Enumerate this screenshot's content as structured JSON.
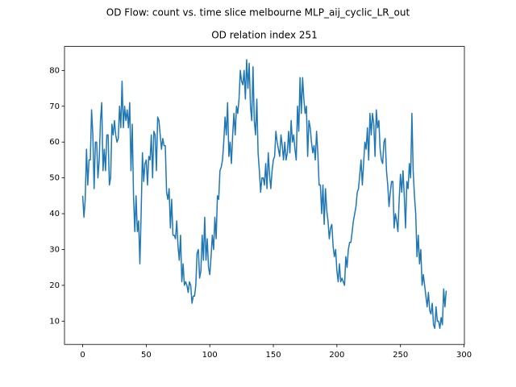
{
  "chart_data": {
    "type": "line",
    "suptitle": "OD Flow: count vs. time slice melbourne MLP_aij_cyclic_LR_out",
    "title": "OD relation index 251",
    "x": [
      0,
      1,
      2,
      3,
      4,
      5,
      6,
      7,
      8,
      9,
      10,
      11,
      12,
      13,
      14,
      15,
      16,
      17,
      18,
      19,
      20,
      21,
      22,
      23,
      24,
      25,
      26,
      27,
      28,
      29,
      30,
      31,
      32,
      33,
      34,
      35,
      36,
      37,
      38,
      39,
      40,
      41,
      42,
      43,
      44,
      45,
      46,
      47,
      48,
      49,
      50,
      51,
      52,
      53,
      54,
      55,
      56,
      57,
      58,
      59,
      60,
      61,
      62,
      63,
      64,
      65,
      66,
      67,
      68,
      69,
      70,
      71,
      72,
      73,
      74,
      75,
      76,
      77,
      78,
      79,
      80,
      81,
      82,
      83,
      84,
      85,
      86,
      87,
      88,
      89,
      90,
      91,
      92,
      93,
      94,
      95,
      96,
      97,
      98,
      99,
      100,
      101,
      102,
      103,
      104,
      105,
      106,
      107,
      108,
      109,
      110,
      111,
      112,
      113,
      114,
      115,
      116,
      117,
      118,
      119,
      120,
      121,
      122,
      123,
      124,
      125,
      126,
      127,
      128,
      129,
      130,
      131,
      132,
      133,
      134,
      135,
      136,
      137,
      138,
      139,
      140,
      141,
      142,
      143,
      144,
      145,
      146,
      147,
      148,
      149,
      150,
      151,
      152,
      153,
      154,
      155,
      156,
      157,
      158,
      159,
      160,
      161,
      162,
      163,
      164,
      165,
      166,
      167,
      168,
      169,
      170,
      171,
      172,
      173,
      174,
      175,
      176,
      177,
      178,
      179,
      180,
      181,
      182,
      183,
      184,
      185,
      186,
      187,
      188,
      189,
      190,
      191,
      192,
      193,
      194,
      195,
      196,
      197,
      198,
      199,
      200,
      201,
      202,
      203,
      204,
      205,
      206,
      207,
      208,
      209,
      210,
      211,
      212,
      213,
      214,
      215,
      216,
      217,
      218,
      219,
      220,
      221,
      222,
      223,
      224,
      225,
      226,
      227,
      228,
      229,
      230,
      231,
      232,
      233,
      234,
      235,
      236,
      237,
      238,
      239,
      240,
      241,
      242,
      243,
      244,
      245,
      246,
      247,
      248,
      249,
      250,
      251,
      252,
      253,
      254,
      255,
      256,
      257,
      258,
      259,
      260,
      261,
      262,
      263,
      264,
      265,
      266,
      267,
      268,
      269,
      270,
      271,
      272,
      273,
      274,
      275,
      276,
      277,
      278,
      279,
      280,
      281,
      282,
      283,
      284,
      285,
      286
    ],
    "series": [
      {
        "color": "#1f77b4",
        "values": [
          45,
          39,
          44,
          58,
          48,
          55,
          55,
          69,
          62,
          47,
          60,
          60,
          50,
          55,
          66,
          71,
          52,
          58,
          52,
          62,
          62,
          48,
          50,
          65,
          62,
          66,
          62,
          60,
          61,
          70,
          64,
          77,
          64,
          70,
          66,
          69,
          64,
          71,
          52,
          65,
          45,
          35,
          45,
          35,
          38,
          26,
          40,
          57,
          49,
          54,
          55,
          48,
          56,
          55,
          62,
          50,
          63,
          62,
          52,
          67,
          66,
          62,
          58,
          61,
          59,
          59,
          46,
          44,
          47,
          36,
          44,
          34,
          34,
          33,
          38,
          31,
          27,
          34,
          21,
          26,
          20,
          21,
          20,
          18,
          21,
          20,
          15,
          17,
          17,
          20,
          29,
          30,
          22,
          24,
          34,
          27,
          39,
          27,
          33,
          25,
          23,
          28,
          34,
          30,
          39,
          33,
          45,
          44,
          52,
          53,
          55,
          60,
          67,
          62,
          71,
          56,
          60,
          54,
          62,
          68,
          62,
          70,
          68,
          72,
          80,
          77,
          76,
          80,
          72,
          83,
          75,
          82,
          70,
          66,
          81,
          66,
          62,
          72,
          57,
          52,
          46,
          50,
          50,
          48,
          54,
          47,
          57,
          51,
          47,
          52,
          55,
          56,
          63,
          60,
          58,
          56,
          62,
          59,
          55,
          60,
          55,
          57,
          63,
          57,
          66,
          60,
          62,
          58,
          55,
          70,
          63,
          78,
          68,
          78,
          72,
          68,
          70,
          56,
          66,
          64,
          60,
          57,
          59,
          55,
          63,
          57,
          48,
          48,
          40,
          48,
          37,
          47,
          41,
          38,
          33,
          36,
          37,
          31,
          28,
          30,
          24,
          21,
          26,
          21,
          22,
          21,
          20,
          28,
          25,
          30,
          32,
          32,
          35,
          38,
          40,
          42,
          46,
          47,
          51,
          55,
          48,
          54,
          60,
          58,
          64,
          55,
          68,
          62,
          68,
          65,
          56,
          69,
          64,
          66,
          58,
          55,
          54,
          60,
          61,
          52,
          48,
          42,
          46,
          49,
          49,
          36,
          40,
          38,
          35,
          44,
          51,
          46,
          52,
          45,
          36,
          49,
          47,
          54,
          50,
          68,
          52,
          45,
          40,
          28,
          34,
          26,
          30,
          20,
          23,
          20,
          17,
          14,
          18,
          13,
          12,
          15,
          9,
          8,
          14,
          10,
          10,
          8,
          11,
          9,
          19,
          14,
          18.5
        ]
      }
    ],
    "xlim": [
      -14.3,
      300.3
    ],
    "xticks": [
      0,
      50,
      100,
      150,
      200,
      250,
      300
    ],
    "ylim": [
      3.5,
      86.7
    ],
    "yticks": [
      10,
      20,
      30,
      40,
      50,
      60,
      70,
      80
    ],
    "grid": false
  }
}
